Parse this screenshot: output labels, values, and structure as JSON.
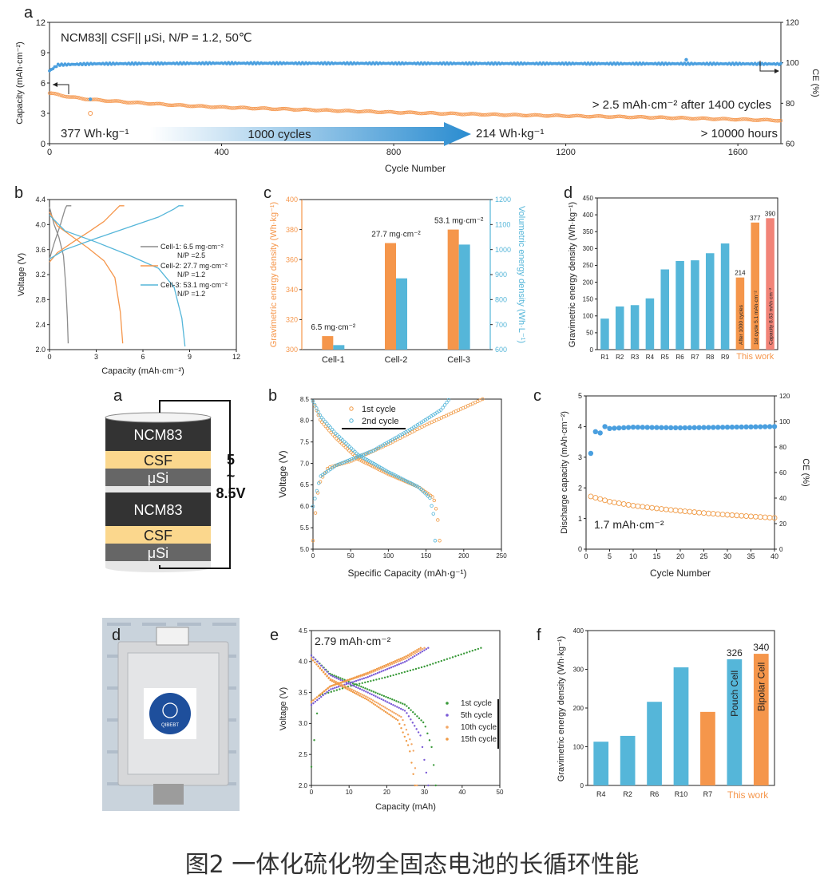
{
  "caption": "图2 一体化硫化物全固态电池的长循环性能",
  "colors": {
    "orange": "#F5964B",
    "blue": "#55B6D9",
    "blue_dot": "#4A9FDF",
    "orange_ring": "#F09A45",
    "gray": "#8C8C8C",
    "red_bar": "#F28478",
    "green": "#3A9A3A",
    "purple": "#7B5BD6"
  },
  "panels": {
    "top_a": {
      "letter": "a",
      "title": "NCM83|| CSF|| μSi, N/P = 1.2, 50℃",
      "ann_start": "377 Wh·kg⁻¹",
      "ann_arrow": "1000 cycles",
      "ann_end": "214 Wh·kg⁻¹",
      "ann_capacity": "> 2.5 mAh·cm⁻² after 1400 cycles",
      "ann_hours": "> 10000 hours"
    },
    "top_b": {
      "letter": "b"
    },
    "top_c": {
      "letter": "c",
      "bar_labels": [
        "6.5 mg·cm⁻²",
        "27.7 mg·cm⁻²",
        "53.1 mg·cm⁻²"
      ]
    },
    "top_d": {
      "letter": "d",
      "rotated_labels": [
        "After 1000 cycles",
        "1st cycle 5.1 mAh·cm⁻²",
        "Capacity 8.63 mAh·cm⁻²"
      ],
      "highlight": "This work"
    },
    "mid_a": {
      "letter": "a",
      "layers": [
        "NCM83",
        "CSF",
        "μSi",
        "NCM83",
        "CSF",
        "μSi"
      ],
      "voltage_label_top": "5",
      "voltage_label_mid": "~",
      "voltage_label_bottom": "8.5V"
    },
    "mid_b": {
      "letter": "b"
    },
    "mid_c": {
      "letter": "c",
      "annotation": "1.7 mAh·cm⁻²"
    },
    "bot_d": {
      "letter": "d",
      "logo_text": "QIBEBT"
    },
    "bot_e": {
      "letter": "e",
      "annotation": "2.79 mAh·cm⁻²"
    },
    "bot_f": {
      "letter": "f",
      "highlight": "This work"
    }
  },
  "chart_data": [
    {
      "id": "top_a",
      "type": "scatter",
      "xlabel": "Cycle Number",
      "ylabel": "Capacity (mAh·cm⁻²)",
      "y2label": "CE (%)",
      "xlim": [
        0,
        1700
      ],
      "ylim": [
        0,
        12
      ],
      "y2lim": [
        60,
        120
      ],
      "xticks": [
        0,
        400,
        800,
        1200,
        1600
      ],
      "yticks": [
        0,
        3,
        6,
        9,
        12
      ],
      "y2ticks": [
        60,
        80,
        100,
        120
      ],
      "series": [
        {
          "axis": "left",
          "x": [
            0,
            50,
            100,
            200,
            300,
            400,
            600,
            800,
            1000,
            1200,
            1400,
            1600,
            1700
          ],
          "y": [
            5.0,
            4.6,
            4.35,
            4.05,
            3.8,
            3.6,
            3.35,
            3.1,
            2.9,
            2.75,
            2.6,
            2.4,
            2.3
          ]
        },
        {
          "axis": "right",
          "x": [
            0,
            20,
            100,
            400,
            800,
            1200,
            1600,
            1700
          ],
          "y": [
            96,
            99,
            99.5,
            99.8,
            99.7,
            99.6,
            99.5,
            99.4
          ]
        }
      ]
    },
    {
      "id": "top_b",
      "type": "line",
      "xlabel": "Capacity (mAh·cm⁻²)",
      "ylabel": "Voltage (V)",
      "xlim": [
        0,
        12
      ],
      "ylim": [
        2.0,
        4.4
      ],
      "xticks": [
        0,
        3,
        6,
        9,
        12
      ],
      "yticks": [
        2.0,
        2.4,
        2.8,
        3.2,
        3.6,
        4.0,
        4.4
      ],
      "legend": [
        "Cell-1: 6.5 mg·cm⁻²",
        "N/P =2.5",
        "Cell-2: 27.7 mg·cm⁻²",
        "N/P =1.2",
        "Cell-3: 53.1 mg·cm⁻²",
        "N/P =1.2"
      ],
      "series": [
        {
          "name": "Cell-1: 6.5 mg·cm⁻²",
          "charge": [
            [
              0,
              3.45
            ],
            [
              0.3,
              3.7
            ],
            [
              0.7,
              4.0
            ],
            [
              1.0,
              4.25
            ],
            [
              1.1,
              4.3
            ],
            [
              1.4,
              4.3
            ]
          ],
          "discharge": [
            [
              0,
              4.28
            ],
            [
              0.3,
              4.0
            ],
            [
              0.6,
              3.8
            ],
            [
              0.9,
              3.5
            ],
            [
              1.05,
              3.0
            ],
            [
              1.15,
              2.5
            ],
            [
              1.2,
              2.1
            ]
          ]
        },
        {
          "name": "Cell-2: 27.7 mg·cm⁻²",
          "charge": [
            [
              0,
              3.4
            ],
            [
              0.5,
              3.55
            ],
            [
              1.5,
              3.72
            ],
            [
              2.5,
              3.88
            ],
            [
              3.5,
              4.05
            ],
            [
              4.3,
              4.25
            ],
            [
              4.5,
              4.3
            ],
            [
              4.8,
              4.3
            ]
          ],
          "discharge": [
            [
              0,
              4.2
            ],
            [
              0.5,
              3.98
            ],
            [
              1.5,
              3.8
            ],
            [
              2.5,
              3.62
            ],
            [
              3.5,
              3.42
            ],
            [
              4.2,
              3.15
            ],
            [
              4.55,
              2.6
            ],
            [
              4.7,
              2.1
            ]
          ]
        },
        {
          "name": "Cell-3: 53.1 mg·cm⁻²",
          "charge": [
            [
              0,
              3.45
            ],
            [
              1,
              3.6
            ],
            [
              3,
              3.78
            ],
            [
              5,
              3.95
            ],
            [
              7,
              4.12
            ],
            [
              8,
              4.25
            ],
            [
              8.3,
              4.3
            ],
            [
              8.6,
              4.3
            ]
          ],
          "discharge": [
            [
              0,
              4.15
            ],
            [
              1,
              3.9
            ],
            [
              3,
              3.72
            ],
            [
              5,
              3.52
            ],
            [
              7,
              3.3
            ],
            [
              8,
              3.0
            ],
            [
              8.5,
              2.5
            ],
            [
              8.7,
              2.05
            ]
          ]
        }
      ]
    },
    {
      "id": "top_c",
      "type": "bar",
      "categories": [
        "Cell-1",
        "Cell-2",
        "Cell-3"
      ],
      "ylabel": "Gravimetric energy density (Wh·kg⁻¹)",
      "y2label": "Volumetric energy density (Wh·L⁻¹)",
      "ylim": [
        300,
        400
      ],
      "y2lim": [
        600,
        1200
      ],
      "yticks": [
        300,
        320,
        340,
        360,
        380,
        400
      ],
      "y2ticks": [
        600,
        700,
        800,
        900,
        1000,
        1100,
        1200
      ],
      "series": [
        {
          "axis": "left",
          "values": [
            309,
            371,
            380
          ]
        },
        {
          "axis": "right",
          "values": [
            618,
            885,
            1020
          ]
        }
      ]
    },
    {
      "id": "top_d",
      "type": "bar",
      "categories": [
        "R1",
        "R2",
        "R3",
        "R4",
        "R5",
        "R6",
        "R7",
        "R8",
        "R9",
        "This work",
        "",
        ""
      ],
      "ylabel": "Gravimetric energy density (Wh·kg⁻¹)",
      "ylim": [
        0,
        450
      ],
      "yticks": [
        0,
        50,
        100,
        150,
        200,
        250,
        300,
        350,
        400,
        450
      ],
      "values": [
        92,
        128,
        132,
        152,
        238,
        263,
        265,
        286,
        315,
        214,
        377,
        390
      ],
      "value_labels": [
        "",
        "",
        "",
        "",
        "",
        "",
        "",
        "",
        "",
        "214",
        "377",
        "390"
      ]
    },
    {
      "id": "mid_b",
      "type": "scatter",
      "xlabel": "Specific Capacity (mAh·g⁻¹)",
      "ylabel": "Voltage (V)",
      "xlim": [
        0,
        250
      ],
      "ylim": [
        5.0,
        8.5
      ],
      "xticks": [
        0,
        50,
        100,
        150,
        200,
        250
      ],
      "yticks": [
        5.0,
        5.5,
        6.0,
        6.5,
        7.0,
        7.5,
        8.0,
        8.5
      ],
      "legend": [
        "1st cycle",
        "2nd cycle"
      ],
      "series": [
        {
          "name": "1st cycle",
          "charge": [
            [
              0,
              5.2
            ],
            [
              5,
              6.2
            ],
            [
              10,
              6.6
            ],
            [
              20,
              6.9
            ],
            [
              50,
              7.05
            ],
            [
              100,
              7.45
            ],
            [
              150,
              7.9
            ],
            [
              200,
              8.3
            ],
            [
              225,
              8.5
            ]
          ],
          "discharge": [
            [
              0,
              8.45
            ],
            [
              10,
              8.0
            ],
            [
              30,
              7.6
            ],
            [
              60,
              7.1
            ],
            [
              100,
              6.75
            ],
            [
              140,
              6.45
            ],
            [
              160,
              6.2
            ],
            [
              165,
              5.8
            ],
            [
              168,
              5.2
            ]
          ]
        },
        {
          "name": "2nd cycle",
          "charge": [
            [
              0,
              6.0
            ],
            [
              10,
              6.7
            ],
            [
              30,
              6.95
            ],
            [
              80,
              7.3
            ],
            [
              130,
              7.8
            ],
            [
              170,
              8.25
            ],
            [
              180,
              8.48
            ]
          ],
          "discharge": [
            [
              0,
              8.45
            ],
            [
              10,
              8.1
            ],
            [
              30,
              7.7
            ],
            [
              60,
              7.2
            ],
            [
              100,
              6.8
            ],
            [
              140,
              6.45
            ],
            [
              155,
              6.2
            ],
            [
              160,
              5.8
            ],
            [
              162,
              5.2
            ]
          ]
        }
      ]
    },
    {
      "id": "mid_c",
      "type": "scatter",
      "xlabel": "Cycle Number",
      "ylabel": "Discharge capacity (mAh·cm⁻²)",
      "y2label": "CE (%)",
      "xlim": [
        0,
        40
      ],
      "ylim": [
        0,
        5
      ],
      "y2lim": [
        0,
        120
      ],
      "xticks": [
        0,
        5,
        10,
        15,
        20,
        25,
        30,
        35,
        40
      ],
      "yticks": [
        0,
        1,
        2,
        3,
        4,
        5
      ],
      "y2ticks": [
        0,
        20,
        40,
        60,
        80,
        100,
        120
      ],
      "series": [
        {
          "axis": "left",
          "x": [
            1,
            5,
            10,
            15,
            20,
            25,
            30,
            35,
            40
          ],
          "y": [
            1.72,
            1.55,
            1.42,
            1.33,
            1.25,
            1.18,
            1.12,
            1.07,
            1.02
          ]
        },
        {
          "axis": "right",
          "x": [
            1,
            2,
            3,
            4,
            5,
            10,
            20,
            30,
            40
          ],
          "y": [
            75,
            92,
            91,
            96,
            94.5,
            95.5,
            95,
            95.5,
            96
          ]
        }
      ]
    },
    {
      "id": "bot_e",
      "type": "scatter",
      "xlabel": "Capacity (mAh)",
      "ylabel": "Voltage (V)",
      "xlim": [
        0,
        50
      ],
      "ylim": [
        2.0,
        4.5
      ],
      "xticks": [
        0,
        10,
        20,
        30,
        40,
        50
      ],
      "yticks": [
        2.0,
        2.5,
        3.0,
        3.5,
        4.0,
        4.5
      ],
      "legend": [
        "1st cycle",
        "5th cycle",
        "10th cycle",
        "15th cycle"
      ],
      "series": [
        {
          "name": "1st cycle",
          "charge": [
            [
              0,
              2.3
            ],
            [
              2,
              3.45
            ],
            [
              10,
              3.6
            ],
            [
              20,
              3.75
            ],
            [
              30,
              3.92
            ],
            [
              40,
              4.12
            ],
            [
              45,
              4.22
            ]
          ],
          "discharge": [
            [
              0,
              4.1
            ],
            [
              5,
              3.8
            ],
            [
              15,
              3.55
            ],
            [
              25,
              3.3
            ],
            [
              30,
              3.0
            ],
            [
              32,
              2.6
            ],
            [
              33,
              2.0
            ]
          ]
        },
        {
          "name": "5th cycle",
          "charge": [
            [
              0,
              3.3
            ],
            [
              5,
              3.55
            ],
            [
              15,
              3.75
            ],
            [
              25,
              4.0
            ],
            [
              31,
              4.22
            ]
          ],
          "discharge": [
            [
              0,
              4.1
            ],
            [
              5,
              3.78
            ],
            [
              15,
              3.5
            ],
            [
              25,
              3.2
            ],
            [
              29,
              2.8
            ],
            [
              31,
              2.0
            ]
          ]
        },
        {
          "name": "10th cycle",
          "charge": [
            [
              0,
              3.35
            ],
            [
              5,
              3.6
            ],
            [
              15,
              3.8
            ],
            [
              25,
              4.05
            ],
            [
              30,
              4.22
            ]
          ],
          "discharge": [
            [
              0,
              4.05
            ],
            [
              5,
              3.72
            ],
            [
              15,
              3.42
            ],
            [
              24,
              3.1
            ],
            [
              27,
              2.6
            ],
            [
              28,
              2.0
            ]
          ]
        },
        {
          "name": "15th cycle",
          "charge": [
            [
              0,
              3.35
            ],
            [
              5,
              3.6
            ],
            [
              15,
              3.82
            ],
            [
              25,
              4.08
            ],
            [
              29,
              4.22
            ]
          ],
          "discharge": [
            [
              0,
              4.05
            ],
            [
              5,
              3.7
            ],
            [
              15,
              3.38
            ],
            [
              23,
              3.05
            ],
            [
              26,
              2.6
            ],
            [
              27.5,
              2.0
            ]
          ]
        }
      ]
    },
    {
      "id": "bot_f",
      "type": "bar",
      "categories": [
        "R4",
        "R2",
        "R6",
        "R10",
        "R7",
        "This work",
        ""
      ],
      "ylabel": "Gravimetric energy density (Wh·kg⁻¹)",
      "ylim": [
        0,
        400
      ],
      "yticks": [
        0,
        100,
        200,
        300,
        400
      ],
      "values": [
        113,
        128,
        216,
        305,
        190,
        326,
        340
      ],
      "value_labels": [
        "",
        "",
        "",
        "",
        "",
        "326",
        "340"
      ],
      "rotated_labels": [
        "",
        "",
        "",
        "",
        "",
        "Pouch Cell",
        "Bipolar Cell"
      ]
    }
  ]
}
